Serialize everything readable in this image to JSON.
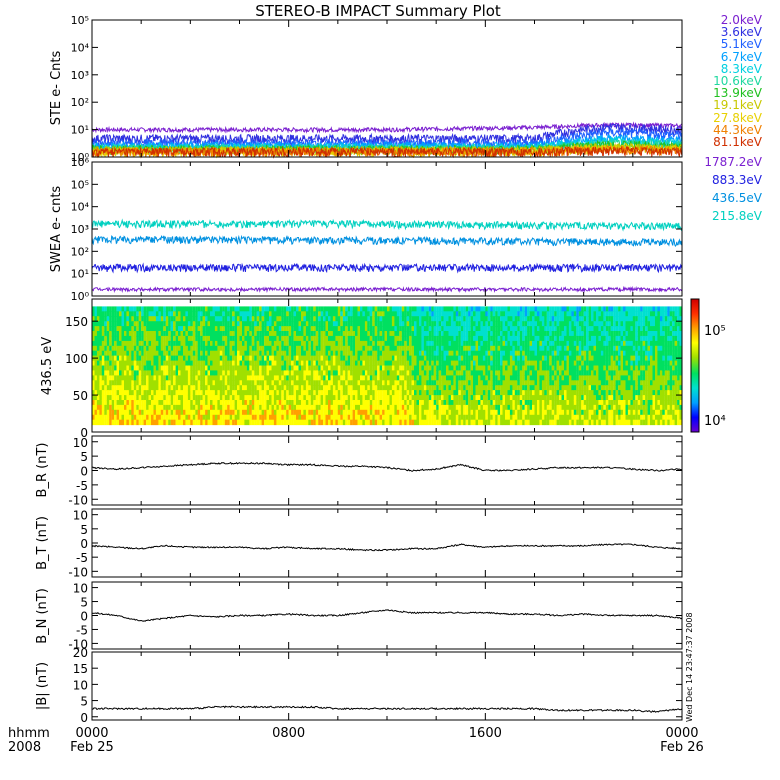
{
  "title": "STEREO-B IMPACT Summary Plot",
  "time_axis": {
    "ticks": [
      {
        "x": 0,
        "top": "0000",
        "bottom": "Feb 25"
      },
      {
        "x": 8,
        "top": "0800",
        "bottom": ""
      },
      {
        "x": 16,
        "top": "1600",
        "bottom": ""
      },
      {
        "x": 24,
        "top": "0000",
        "bottom": "Feb 26"
      }
    ],
    "corner_top": "hhmm",
    "corner_bottom": "2008",
    "range_hours": [
      0,
      24
    ]
  },
  "side_stamp": "Wed Dec 14 23:47:37 2008",
  "colors": {
    "line": "#000000",
    "colorbar": [
      "#6a00d0",
      "#0000ff",
      "#00a0ff",
      "#00e0d0",
      "#00e060",
      "#a0e000",
      "#ffff00",
      "#ffa000",
      "#ff3000",
      "#d00000"
    ]
  },
  "chart_data": [
    {
      "type": "line",
      "panel": "ste",
      "ylabel": "STE e- Cnts",
      "yscale": "log",
      "ylim": [
        1,
        100000
      ],
      "ytick_labels": [
        "10⁰",
        "10¹",
        "10²",
        "10³",
        "10⁴",
        "10⁵"
      ],
      "series": [
        {
          "name": "2.0keV",
          "color": "#7a1fd0",
          "values": [
            10,
            10,
            10,
            10,
            10,
            11,
            12,
            15,
            14
          ]
        },
        {
          "name": "3.6keV",
          "color": "#3030e0",
          "values": [
            3,
            3,
            3,
            3,
            3,
            3,
            3,
            8,
            6
          ]
        },
        {
          "name": "5.1keV",
          "color": "#2060ff",
          "values": [
            2,
            2,
            2,
            2,
            2,
            2,
            2,
            5,
            4
          ]
        },
        {
          "name": "6.7keV",
          "color": "#00a0ff",
          "values": [
            1.6,
            1.6,
            1.6,
            1.6,
            1.6,
            1.6,
            1.6,
            3,
            2.5
          ]
        },
        {
          "name": "8.3keV",
          "color": "#00d0e0",
          "values": [
            1.4,
            1.4,
            1.4,
            1.4,
            1.4,
            1.4,
            1.4,
            2.5,
            2
          ]
        },
        {
          "name": "10.6keV",
          "color": "#20d8a0",
          "values": [
            1.3,
            1.3,
            1.3,
            1.3,
            1.3,
            1.3,
            1.3,
            2,
            1.8
          ]
        },
        {
          "name": "13.9keV",
          "color": "#20c020",
          "values": [
            1.2,
            1.2,
            1.2,
            1.2,
            1.2,
            1.2,
            1.2,
            1.8,
            1.5
          ]
        },
        {
          "name": "19.1keV",
          "color": "#c8c800",
          "values": [
            1.1,
            1.1,
            1.1,
            1.1,
            1.1,
            1.1,
            1.1,
            1.5,
            1.3
          ]
        },
        {
          "name": "27.8keV",
          "color": "#e8d000",
          "values": [
            1,
            1,
            1,
            1,
            1,
            1,
            1,
            1.3,
            1.2
          ]
        },
        {
          "name": "44.3keV",
          "color": "#f08000",
          "values": [
            1,
            1,
            1,
            1,
            1,
            1,
            1,
            1.2,
            1.1
          ]
        },
        {
          "name": "81.1keV",
          "color": "#d03000",
          "values": [
            1,
            1,
            1,
            1,
            1,
            1,
            1,
            1.1,
            1
          ]
        }
      ]
    },
    {
      "type": "line",
      "panel": "swea",
      "ylabel": "SWEA e- cnts",
      "yscale": "log",
      "ylim": [
        1,
        1000000
      ],
      "ytick_labels": [
        "10⁰",
        "10¹",
        "10²",
        "10³",
        "10⁴",
        "10⁵",
        "10⁶"
      ],
      "series": [
        {
          "name": "1787.2eV",
          "color": "#7a1fd0",
          "values": [
            2,
            2,
            2,
            2,
            2,
            2,
            2,
            2,
            2
          ]
        },
        {
          "name": "883.3eV",
          "color": "#2020e0",
          "values": [
            12,
            12,
            12,
            12,
            12,
            12,
            12,
            12,
            12
          ]
        },
        {
          "name": "436.5eV",
          "color": "#0090e0",
          "values": [
            220,
            220,
            210,
            200,
            200,
            190,
            180,
            170,
            170
          ]
        },
        {
          "name": "215.8eV",
          "color": "#00d0c0",
          "values": [
            1100,
            1100,
            1100,
            1100,
            1050,
            1000,
            950,
            900,
            900
          ]
        }
      ]
    },
    {
      "type": "heatmap",
      "panel": "pad",
      "ylabel": "436.5 eV",
      "ylim": [
        0,
        180
      ],
      "yticks": [
        0,
        50,
        100,
        150
      ],
      "colorbar_ticks": [
        "10⁵",
        "10⁴"
      ]
    },
    {
      "type": "line",
      "panel": "br",
      "ylabel": "B_R (nT)",
      "ylim": [
        -12,
        12
      ],
      "yticks": [
        -10,
        -5,
        0,
        5,
        10
      ],
      "x": [
        0,
        1,
        2,
        3,
        4,
        5,
        6,
        7,
        8,
        9,
        10,
        11,
        12,
        13,
        14,
        15,
        16,
        17,
        18,
        19,
        20,
        21,
        22,
        23,
        24
      ],
      "values": [
        1,
        0.5,
        1,
        1.5,
        2,
        2.5,
        2.5,
        2.5,
        2,
        2,
        1.5,
        1.5,
        1,
        0,
        0.5,
        2,
        0,
        0,
        0.5,
        1,
        1,
        1,
        0.5,
        0,
        0.5
      ]
    },
    {
      "type": "line",
      "panel": "bt",
      "ylabel": "B_T (nT)",
      "ylim": [
        -12,
        12
      ],
      "yticks": [
        -10,
        -5,
        0,
        5,
        10
      ],
      "x": [
        0,
        1,
        2,
        3,
        4,
        5,
        6,
        7,
        8,
        9,
        10,
        11,
        12,
        13,
        14,
        15,
        16,
        17,
        18,
        19,
        20,
        21,
        22,
        23,
        24
      ],
      "values": [
        -1,
        -1.5,
        -2,
        -1,
        -1.5,
        -1.5,
        -1.5,
        -2,
        -1.5,
        -2,
        -2,
        -2.5,
        -2.5,
        -2,
        -2,
        -0.5,
        -1.5,
        -1,
        -1,
        -1,
        -1,
        -0.5,
        -0.5,
        -1.5,
        -2
      ]
    },
    {
      "type": "line",
      "panel": "bn",
      "ylabel": "B_N (nT)",
      "ylim": [
        -12,
        12
      ],
      "yticks": [
        -10,
        -5,
        0,
        5,
        10
      ],
      "x": [
        0,
        1,
        2,
        3,
        4,
        5,
        6,
        7,
        8,
        9,
        10,
        11,
        12,
        13,
        14,
        15,
        16,
        17,
        18,
        19,
        20,
        21,
        22,
        23,
        24
      ],
      "values": [
        1,
        0,
        -2,
        -1,
        0,
        -0.5,
        0,
        0,
        0.5,
        0,
        0,
        1,
        2,
        1,
        1,
        1,
        1,
        0.5,
        0.5,
        0,
        0.5,
        0,
        0,
        0,
        -1
      ]
    },
    {
      "type": "line",
      "panel": "bmag",
      "ylabel": "|B| (nT)",
      "ylim": [
        -1,
        20
      ],
      "yticks": [
        0,
        5,
        10,
        15,
        20
      ],
      "x": [
        0,
        1,
        2,
        3,
        4,
        5,
        6,
        7,
        8,
        9,
        10,
        11,
        12,
        13,
        14,
        15,
        16,
        17,
        18,
        19,
        20,
        21,
        22,
        23,
        24
      ],
      "values": [
        2.5,
        2.5,
        2.5,
        2.5,
        2.5,
        3,
        3,
        3,
        3,
        3,
        2.5,
        2.5,
        2.5,
        2.5,
        2.5,
        2.5,
        2.5,
        2.5,
        2.5,
        2,
        2,
        2,
        2,
        1.5,
        2.5
      ]
    }
  ]
}
